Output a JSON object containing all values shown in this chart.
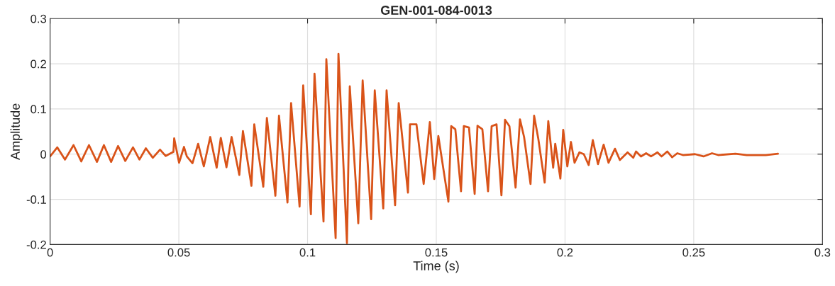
{
  "chart_data": {
    "type": "line",
    "title": "GEN-001-084-0013",
    "xlabel": "Time (s)",
    "ylabel": "Amplitude",
    "x": [
      0,
      0.0028,
      0.0058,
      0.0091,
      0.0121,
      0.0151,
      0.0182,
      0.0209,
      0.0237,
      0.0264,
      0.0292,
      0.0322,
      0.0347,
      0.0372,
      0.0399,
      0.0427,
      0.0449,
      0.0479,
      0.0482,
      0.0501,
      0.052,
      0.0531,
      0.0553,
      0.0575,
      0.0597,
      0.0622,
      0.0647,
      0.0663,
      0.0685,
      0.0705,
      0.0735,
      0.0749,
      0.0782,
      0.0793,
      0.0828,
      0.0842,
      0.0875,
      0.0889,
      0.0922,
      0.0936,
      0.0969,
      0.0983,
      0.1013,
      0.1027,
      0.1062,
      0.1073,
      0.1109,
      0.112,
      0.1153,
      0.1164,
      0.1197,
      0.1214,
      0.1247,
      0.1261,
      0.1294,
      0.1307,
      0.134,
      0.1354,
      0.139,
      0.1398,
      0.1423,
      0.1451,
      0.1475,
      0.1492,
      0.1508,
      0.1547,
      0.1558,
      0.1574,
      0.1596,
      0.1607,
      0.1627,
      0.1649,
      0.166,
      0.1679,
      0.1701,
      0.1715,
      0.1734,
      0.1753,
      0.1767,
      0.1784,
      0.1808,
      0.1825,
      0.1841,
      0.1866,
      0.188,
      0.1896,
      0.1921,
      0.1935,
      0.1954,
      0.1962,
      0.1982,
      0.1993,
      0.2009,
      0.2023,
      0.2037,
      0.2056,
      0.2073,
      0.2092,
      0.2108,
      0.2128,
      0.215,
      0.2169,
      0.2194,
      0.2213,
      0.2243,
      0.2265,
      0.2276,
      0.2295,
      0.2315,
      0.2334,
      0.2359,
      0.2375,
      0.2397,
      0.2416,
      0.2436,
      0.2458,
      0.2505,
      0.2538,
      0.2571,
      0.2595,
      0.2662,
      0.2706,
      0.278,
      0.2827
    ],
    "series": [
      {
        "color": "#d95319",
        "values": [
          -0.005,
          0.015,
          -0.012,
          0.02,
          -0.016,
          0.02,
          -0.017,
          0.02,
          -0.017,
          0.018,
          -0.015,
          0.015,
          -0.012,
          0.013,
          -0.008,
          0.01,
          -0.004,
          0.005,
          0.035,
          -0.019,
          0.016,
          -0.005,
          -0.02,
          0.023,
          -0.027,
          0.038,
          -0.03,
          0.036,
          -0.029,
          0.038,
          -0.046,
          0.051,
          -0.07,
          0.066,
          -0.072,
          0.08,
          -0.092,
          0.085,
          -0.107,
          0.113,
          -0.116,
          0.152,
          -0.133,
          0.178,
          -0.149,
          0.21,
          -0.186,
          0.222,
          -0.197,
          0.15,
          -0.153,
          0.163,
          -0.144,
          0.141,
          -0.12,
          0.141,
          -0.113,
          0.113,
          -0.085,
          0.066,
          0.066,
          -0.066,
          0.071,
          -0.055,
          0.04,
          -0.105,
          0.062,
          0.055,
          -0.082,
          0.062,
          0.059,
          -0.088,
          0.063,
          0.055,
          -0.082,
          0.062,
          0.066,
          -0.091,
          0.076,
          0.062,
          -0.074,
          0.077,
          0.038,
          -0.066,
          0.085,
          0.035,
          -0.063,
          0.073,
          -0.03,
          0.023,
          -0.054,
          0.054,
          -0.027,
          0.027,
          -0.019,
          0.004,
          0,
          -0.024,
          0.031,
          -0.022,
          0.021,
          -0.019,
          0.012,
          -0.013,
          0.004,
          -0.008,
          0.006,
          -0.005,
          0.002,
          -0.005,
          0.004,
          -0.005,
          0.006,
          -0.007,
          0.002,
          -0.002,
          0,
          -0.005,
          0.002,
          -0.002,
          0.001,
          -0.002,
          -0.002,
          0.001
        ]
      }
    ],
    "xlim": [
      0,
      0.3
    ],
    "xticks": [
      0,
      0.05,
      0.1,
      0.15,
      0.2,
      0.25,
      0.3
    ],
    "ylim": [
      -0.2,
      0.3
    ],
    "yticks": [
      -0.2,
      -0.1,
      0,
      0.1,
      0.2,
      0.3
    ],
    "grid": true,
    "marker": "none",
    "line_style": "solid"
  }
}
